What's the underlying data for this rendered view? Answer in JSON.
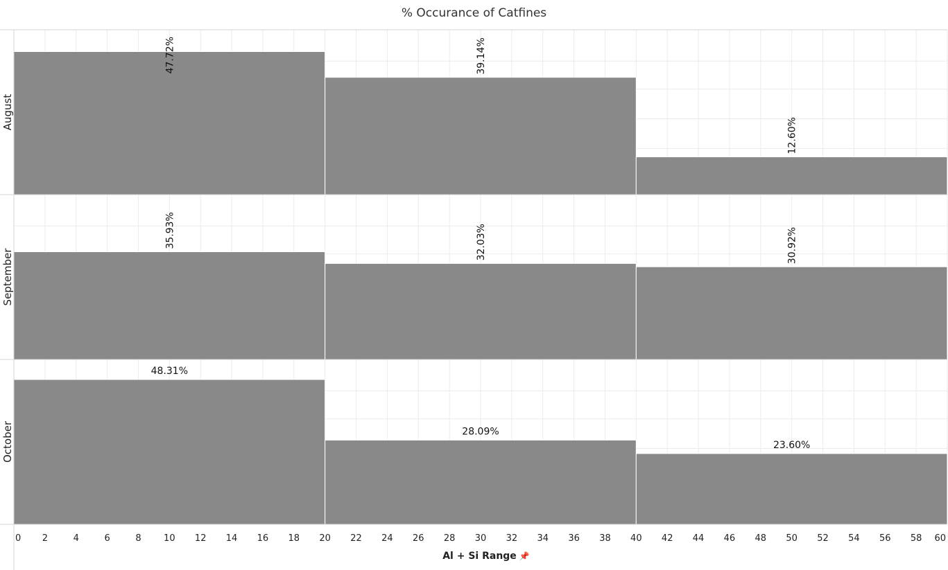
{
  "chart_data": {
    "type": "bar",
    "title": "% Occurance of Catfines",
    "xlabel": "Al + Si Range",
    "ylabel": "",
    "xlim": [
      0,
      60
    ],
    "x_ticks": [
      0,
      2,
      4,
      6,
      8,
      10,
      12,
      14,
      16,
      18,
      20,
      22,
      24,
      26,
      28,
      30,
      32,
      34,
      36,
      38,
      40,
      42,
      44,
      46,
      48,
      50,
      52,
      54,
      56,
      58,
      60
    ],
    "ylim": [
      0,
      55
    ],
    "grid": true,
    "bins": [
      [
        0,
        20
      ],
      [
        20,
        40
      ],
      [
        40,
        60
      ]
    ],
    "rows": [
      {
        "name": "August",
        "values": [
          47.72,
          39.14,
          12.6
        ],
        "labels": [
          "47.72%",
          "39.14%",
          "12.60%"
        ],
        "label_orientation": "vertical"
      },
      {
        "name": "September",
        "values": [
          35.93,
          32.03,
          30.92
        ],
        "labels": [
          "35.93%",
          "32.03%",
          "30.92%"
        ],
        "label_orientation": "vertical"
      },
      {
        "name": "October",
        "values": [
          48.31,
          28.09,
          23.6
        ],
        "labels": [
          "48.31%",
          "28.09%",
          "23.60%"
        ],
        "label_orientation": "horizontal"
      }
    ],
    "bar_color": "#898989",
    "grid_color": "#ebebeb",
    "border_color": "#d4d4d4"
  },
  "x_axis": {
    "pin_icon": "pin-icon"
  }
}
